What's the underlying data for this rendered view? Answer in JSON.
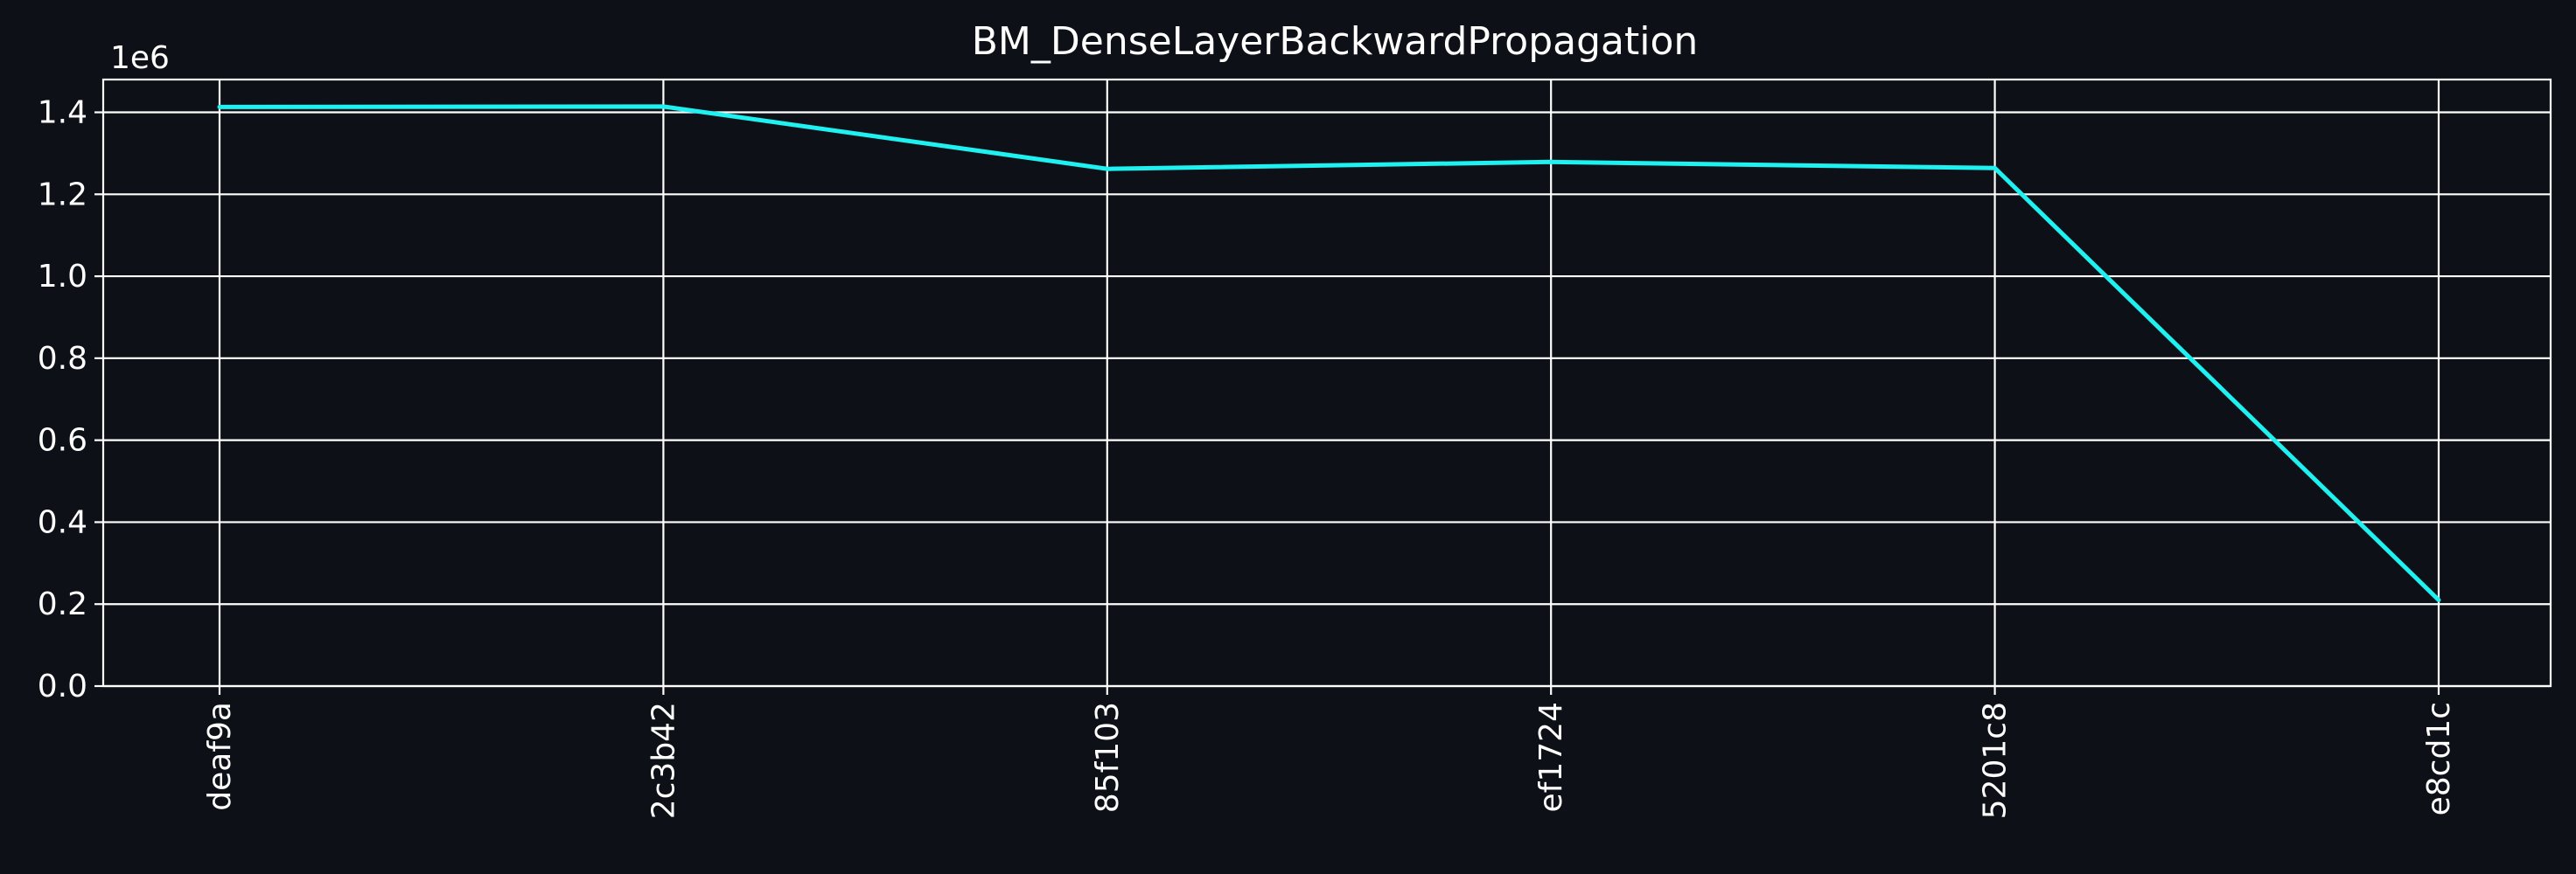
{
  "chart_data": {
    "type": "line",
    "title": "BM_DenseLayerBackwardPropagation",
    "xlabel": "",
    "ylabel": "",
    "y_offset_label": "1e6",
    "categories": [
      "deaf9a",
      "2c3b42",
      "85f103",
      "ef1724",
      "5201c8",
      "e8cd1c"
    ],
    "series": [
      {
        "values": [
          1413000,
          1414000,
          1262000,
          1279000,
          1264000,
          210000
        ],
        "color": "#1ff0f0"
      }
    ],
    "ylim": [
      0,
      1480000
    ],
    "yticks": [
      0,
      200000,
      400000,
      600000,
      800000,
      1000000,
      1200000,
      1400000
    ],
    "ytick_labels": [
      "0.0",
      "0.2",
      "0.4",
      "0.6",
      "0.8",
      "1.0",
      "1.2",
      "1.4"
    ],
    "grid": true,
    "legend": "none"
  },
  "colors": {
    "background": "#0d1017",
    "foreground": "#ffffff"
  }
}
